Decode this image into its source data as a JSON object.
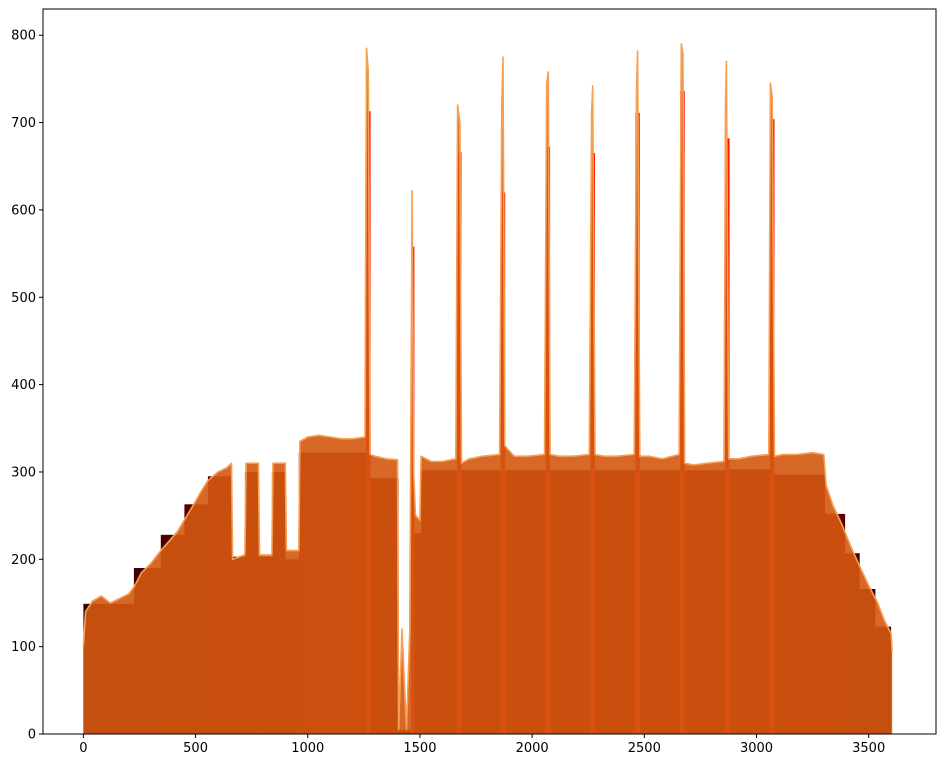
{
  "chart_data": {
    "type": "area",
    "title": "",
    "xlabel": "",
    "ylabel": "",
    "xlim": [
      -180,
      3800
    ],
    "ylim": [
      0,
      830
    ],
    "xticks": [
      0,
      500,
      1000,
      1500,
      2000,
      2500,
      3000,
      3500
    ],
    "xtick_labels": [
      "0",
      "500",
      "1000",
      "1500",
      "2000",
      "2500",
      "3000",
      "3500"
    ],
    "yticks": [
      0,
      100,
      200,
      300,
      400,
      500,
      600,
      700,
      800
    ],
    "ytick_labels": [
      "0",
      "100",
      "200",
      "300",
      "400",
      "500",
      "600",
      "700",
      "800"
    ],
    "grid": false,
    "legend": "none",
    "colors": {
      "orange_line": "#f7a055",
      "orange_fill": "#d4580f",
      "spike_red": "#ff1a00",
      "dark_red": "#7a0000",
      "darkest": "#350000"
    },
    "series": [
      {
        "kind": "bars",
        "segments": [
          {
            "x0": 0,
            "x1": 225,
            "y": 149,
            "color": "#3a0000"
          },
          {
            "x0": 225,
            "x1": 345,
            "y": 190,
            "color": "#430000"
          },
          {
            "x0": 345,
            "x1": 450,
            "y": 228,
            "color": "#4d0000"
          },
          {
            "x0": 450,
            "x1": 555,
            "y": 263,
            "color": "#560000"
          },
          {
            "x0": 555,
            "x1": 660,
            "y": 295,
            "color": "#600000"
          },
          {
            "x0": 660,
            "x1": 720,
            "y": 203,
            "color": "#5a0000"
          },
          {
            "x0": 720,
            "x1": 780,
            "y": 300,
            "color": "#620000"
          },
          {
            "x0": 780,
            "x1": 840,
            "y": 203,
            "color": "#5a0000"
          },
          {
            "x0": 840,
            "x1": 900,
            "y": 300,
            "color": "#620000"
          },
          {
            "x0": 900,
            "x1": 960,
            "y": 200,
            "color": "#580000"
          },
          {
            "x0": 960,
            "x1": 1260,
            "y": 322,
            "color": "#7a0000"
          },
          {
            "x0": 1260,
            "x1": 1280,
            "y": 713,
            "color": "#ff1a00"
          },
          {
            "x0": 1280,
            "x1": 1405,
            "y": 293,
            "color": "#720000"
          },
          {
            "x0": 1405,
            "x1": 1425,
            "y": 5,
            "color": "#720000"
          },
          {
            "x0": 1425,
            "x1": 1460,
            "y": 5,
            "color": "#720000"
          },
          {
            "x0": 1460,
            "x1": 1475,
            "y": 558,
            "color": "#ff1a00"
          },
          {
            "x0": 1475,
            "x1": 1505,
            "y": 230,
            "color": "#6a0000"
          },
          {
            "x0": 1505,
            "x1": 1665,
            "y": 302,
            "color": "#760000"
          },
          {
            "x0": 1665,
            "x1": 1685,
            "y": 666,
            "color": "#ff1a00"
          },
          {
            "x0": 1685,
            "x1": 1860,
            "y": 302,
            "color": "#760000"
          },
          {
            "x0": 1860,
            "x1": 1880,
            "y": 620,
            "color": "#ff1a00"
          },
          {
            "x0": 1880,
            "x1": 2060,
            "y": 302,
            "color": "#760000"
          },
          {
            "x0": 2060,
            "x1": 2080,
            "y": 672,
            "color": "#ff1a00"
          },
          {
            "x0": 2080,
            "x1": 2260,
            "y": 302,
            "color": "#760000"
          },
          {
            "x0": 2260,
            "x1": 2280,
            "y": 665,
            "color": "#ff1a00"
          },
          {
            "x0": 2280,
            "x1": 2460,
            "y": 302,
            "color": "#760000"
          },
          {
            "x0": 2460,
            "x1": 2480,
            "y": 711,
            "color": "#ff1a00"
          },
          {
            "x0": 2480,
            "x1": 2660,
            "y": 302,
            "color": "#760000"
          },
          {
            "x0": 2660,
            "x1": 2680,
            "y": 736,
            "color": "#ff1a00"
          },
          {
            "x0": 2680,
            "x1": 2860,
            "y": 302,
            "color": "#760000"
          },
          {
            "x0": 2860,
            "x1": 2880,
            "y": 682,
            "color": "#ff1a00"
          },
          {
            "x0": 2880,
            "x1": 3060,
            "y": 303,
            "color": "#760000"
          },
          {
            "x0": 3060,
            "x1": 3080,
            "y": 704,
            "color": "#ff1a00"
          },
          {
            "x0": 3080,
            "x1": 3305,
            "y": 297,
            "color": "#720000"
          },
          {
            "x0": 3305,
            "x1": 3395,
            "y": 252,
            "color": "#5a0000"
          },
          {
            "x0": 3395,
            "x1": 3460,
            "y": 207,
            "color": "#4d0000"
          },
          {
            "x0": 3460,
            "x1": 3530,
            "y": 166,
            "color": "#420000"
          },
          {
            "x0": 3530,
            "x1": 3600,
            "y": 123,
            "color": "#380000"
          }
        ]
      },
      {
        "kind": "line",
        "color": "#f7a055",
        "points": [
          [
            0,
            100
          ],
          [
            10,
            140
          ],
          [
            40,
            152
          ],
          [
            80,
            158
          ],
          [
            120,
            150
          ],
          [
            160,
            155
          ],
          [
            200,
            160
          ],
          [
            225,
            168
          ],
          [
            260,
            185
          ],
          [
            300,
            195
          ],
          [
            345,
            210
          ],
          [
            380,
            220
          ],
          [
            420,
            232
          ],
          [
            450,
            245
          ],
          [
            490,
            262
          ],
          [
            530,
            280
          ],
          [
            555,
            290
          ],
          [
            600,
            300
          ],
          [
            640,
            305
          ],
          [
            660,
            310
          ],
          [
            665,
            200
          ],
          [
            720,
            205
          ],
          [
            725,
            310
          ],
          [
            780,
            310
          ],
          [
            785,
            205
          ],
          [
            840,
            205
          ],
          [
            845,
            310
          ],
          [
            900,
            310
          ],
          [
            905,
            210
          ],
          [
            960,
            210
          ],
          [
            965,
            335
          ],
          [
            1000,
            340
          ],
          [
            1050,
            342
          ],
          [
            1100,
            340
          ],
          [
            1150,
            338
          ],
          [
            1200,
            338
          ],
          [
            1255,
            340
          ],
          [
            1262,
            785
          ],
          [
            1270,
            760
          ],
          [
            1278,
            320
          ],
          [
            1300,
            318
          ],
          [
            1350,
            315
          ],
          [
            1400,
            314
          ],
          [
            1405,
            5
          ],
          [
            1420,
            120
          ],
          [
            1440,
            5
          ],
          [
            1455,
            120
          ],
          [
            1465,
            622
          ],
          [
            1472,
            300
          ],
          [
            1480,
            250
          ],
          [
            1500,
            245
          ],
          [
            1505,
            318
          ],
          [
            1550,
            312
          ],
          [
            1600,
            312
          ],
          [
            1660,
            315
          ],
          [
            1668,
            720
          ],
          [
            1678,
            700
          ],
          [
            1685,
            310
          ],
          [
            1720,
            315
          ],
          [
            1780,
            318
          ],
          [
            1855,
            320
          ],
          [
            1865,
            720
          ],
          [
            1870,
            775
          ],
          [
            1878,
            330
          ],
          [
            1920,
            318
          ],
          [
            1980,
            318
          ],
          [
            2055,
            320
          ],
          [
            2065,
            745
          ],
          [
            2072,
            758
          ],
          [
            2080,
            320
          ],
          [
            2120,
            318
          ],
          [
            2180,
            318
          ],
          [
            2255,
            320
          ],
          [
            2265,
            710
          ],
          [
            2270,
            742
          ],
          [
            2280,
            320
          ],
          [
            2320,
            318
          ],
          [
            2380,
            318
          ],
          [
            2455,
            320
          ],
          [
            2465,
            735
          ],
          [
            2470,
            782
          ],
          [
            2480,
            318
          ],
          [
            2520,
            318
          ],
          [
            2580,
            315
          ],
          [
            2655,
            320
          ],
          [
            2665,
            790
          ],
          [
            2672,
            780
          ],
          [
            2680,
            310
          ],
          [
            2720,
            308
          ],
          [
            2780,
            310
          ],
          [
            2855,
            312
          ],
          [
            2862,
            720
          ],
          [
            2866,
            770
          ],
          [
            2876,
            315
          ],
          [
            2920,
            315
          ],
          [
            2980,
            318
          ],
          [
            3055,
            320
          ],
          [
            3062,
            745
          ],
          [
            3070,
            730
          ],
          [
            3080,
            318
          ],
          [
            3120,
            320
          ],
          [
            3180,
            320
          ],
          [
            3250,
            322
          ],
          [
            3300,
            320
          ],
          [
            3310,
            285
          ],
          [
            3340,
            262
          ],
          [
            3380,
            240
          ],
          [
            3420,
            215
          ],
          [
            3460,
            192
          ],
          [
            3500,
            170
          ],
          [
            3540,
            150
          ],
          [
            3570,
            130
          ],
          [
            3600,
            115
          ],
          [
            3605,
            95
          ]
        ]
      }
    ]
  }
}
